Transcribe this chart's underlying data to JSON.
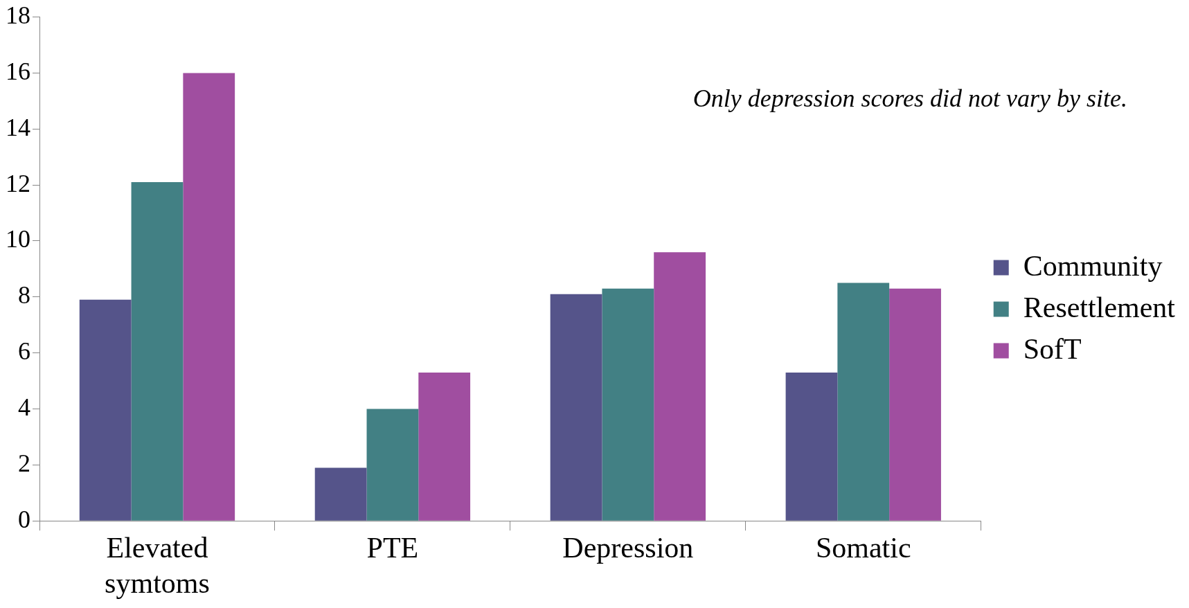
{
  "chart_data": {
    "type": "bar",
    "categories": [
      "Elevated symtoms",
      "PTE",
      "Depression",
      "Somatic"
    ],
    "series": [
      {
        "name": "Community",
        "color": "#55548a",
        "values": [
          7.9,
          1.9,
          8.1,
          5.3
        ]
      },
      {
        "name": "Resettlement",
        "color": "#428084",
        "values": [
          12.1,
          4.0,
          8.3,
          8.5
        ]
      },
      {
        "name": "SofT",
        "color": "#a04ea0",
        "values": [
          16.0,
          5.3,
          9.6,
          8.3
        ]
      }
    ],
    "ylim": [
      0,
      18
    ],
    "yticks": [
      0,
      2,
      4,
      6,
      8,
      10,
      12,
      14,
      16,
      18
    ],
    "grid": false,
    "legend": "right",
    "annotations": [
      "Only depression scores did not vary by site."
    ]
  }
}
